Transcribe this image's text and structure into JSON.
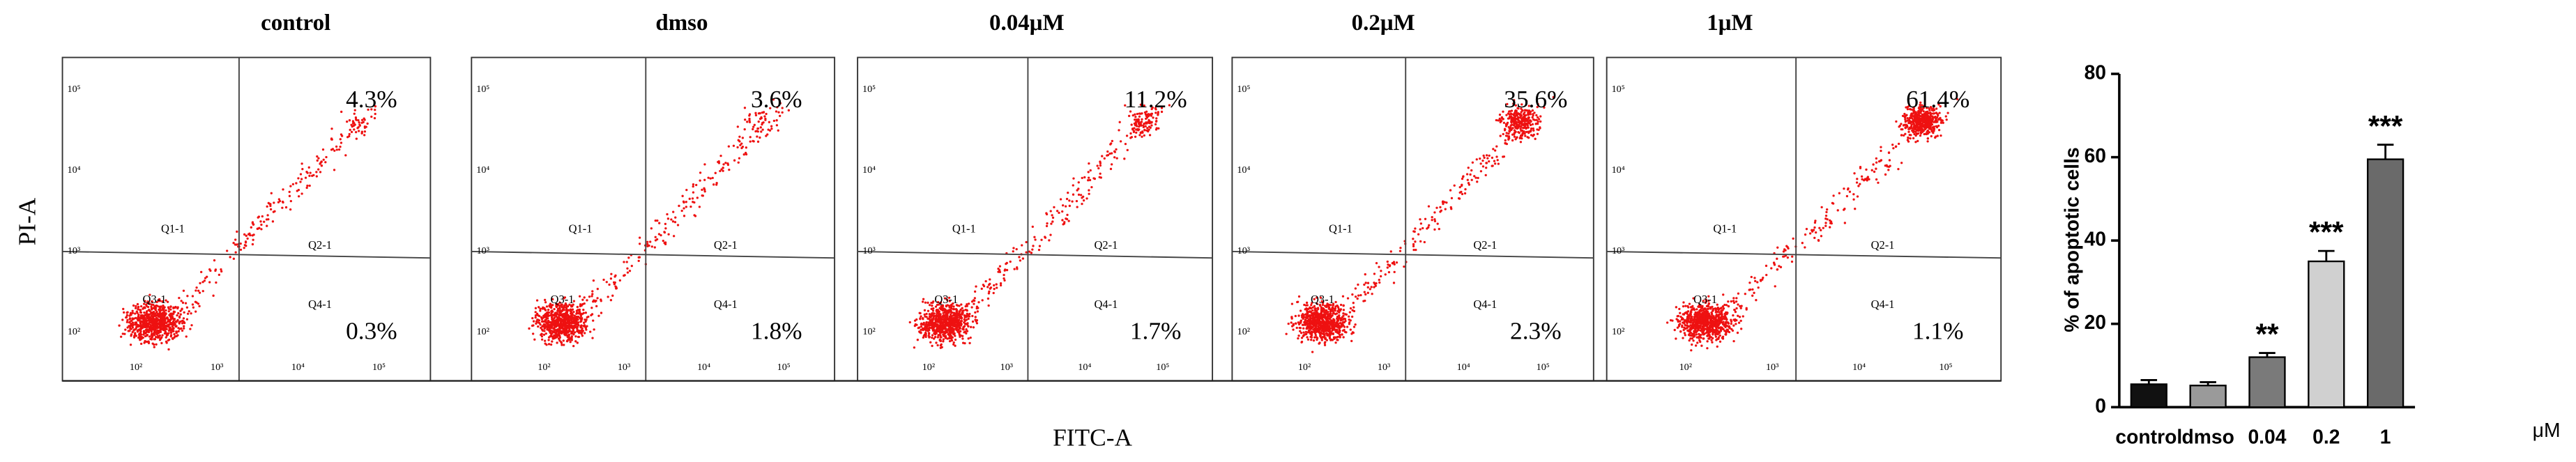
{
  "flow_panels": [
    {
      "title": "control",
      "upper_right": "4.3%",
      "lower_right": "0.3%",
      "q1": "Q1-1",
      "q2": "Q2-1",
      "q3": "Q3-1",
      "q4": "Q4-1"
    },
    {
      "title": "dmso",
      "upper_right": "3.6%",
      "lower_right": "1.8%",
      "q1": "Q1-1",
      "q2": "Q2-1",
      "q3": "Q3-1",
      "q4": "Q4-1"
    },
    {
      "title": "0.04μM",
      "upper_right": "11.2%",
      "lower_right": "1.7%",
      "q1": "Q1-1",
      "q2": "Q2-1",
      "q3": "Q3-1",
      "q4": "Q4-1"
    },
    {
      "title": "0.2μM",
      "upper_right": "35.6%",
      "lower_right": "2.3%",
      "q1": "Q1-1",
      "q2": "Q2-1",
      "q3": "Q3-1",
      "q4": "Q4-1"
    },
    {
      "title": "1μM",
      "upper_right": "61.4%",
      "lower_right": "1.1%",
      "q1": "Q1-1",
      "q2": "Q2-1",
      "q3": "Q3-1",
      "q4": "Q4-1"
    }
  ],
  "flow_axis_ticks": [
    "10²",
    "10³",
    "10⁴",
    "10⁵"
  ],
  "x_label": "FITC-A",
  "y_label": "PI-A",
  "chart_data": {
    "type": "bar",
    "ylabel": "% of apoptotic cells",
    "xunit": "μM",
    "categories": [
      "control",
      "dmso",
      "0.04",
      "0.2",
      "1"
    ],
    "values": [
      5.5,
      5.2,
      12,
      35,
      59.5
    ],
    "errors": [
      1,
      0.8,
      1,
      2.5,
      3.5
    ],
    "significance": [
      null,
      null,
      "**",
      "***",
      "***"
    ],
    "colors": [
      "#111111",
      "#9a9a9a",
      "#7a7a7a",
      "#d0d0d0",
      "#6a6a6a"
    ],
    "ylim": [
      0,
      80
    ],
    "yticks": [
      0,
      20,
      40,
      60,
      80
    ]
  }
}
